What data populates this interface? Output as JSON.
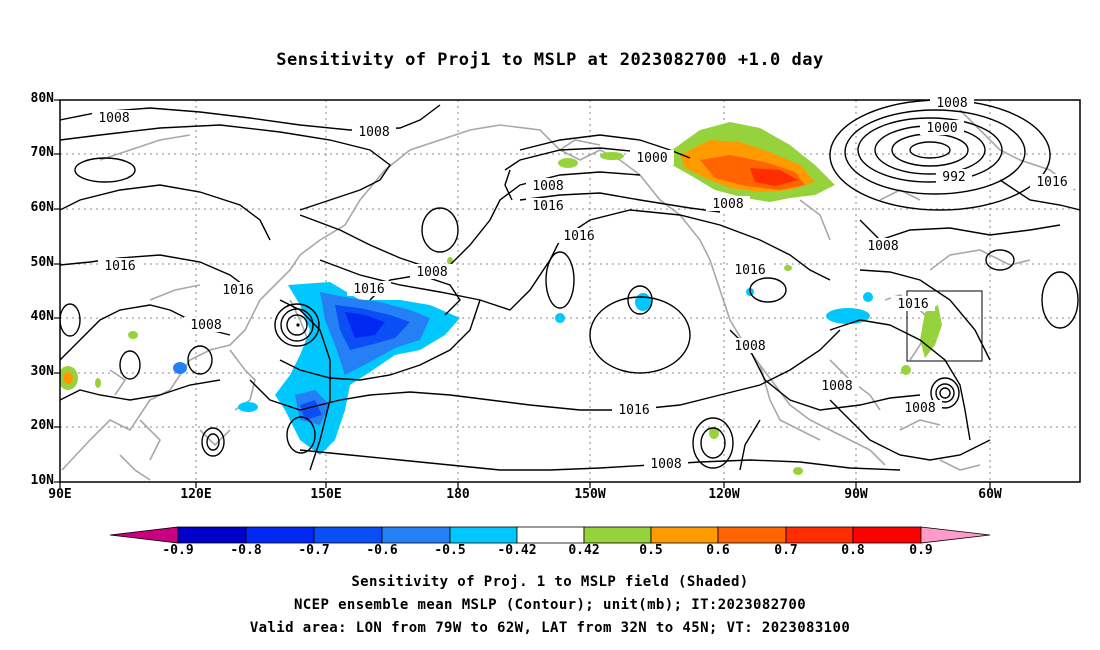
{
  "title": "Sensitivity of Proj1 to MSLP at 2023082700 +1.0 day",
  "latitude_labels": [
    "80N",
    "70N",
    "60N",
    "50N",
    "40N",
    "30N",
    "20N",
    "10N"
  ],
  "longitude_labels": [
    "90E",
    "120E",
    "150E",
    "180",
    "150W",
    "120W",
    "90W",
    "60W"
  ],
  "contour_labels": [
    "1008",
    "1008",
    "1016",
    "1016",
    "1008",
    "1016",
    "1016",
    "1008",
    "1008",
    "1016",
    "1016",
    "1000",
    "1008",
    "1016",
    "1008",
    "1008",
    "1000",
    "992",
    "1016",
    "1008",
    "1016",
    "1008",
    "1008",
    "1008",
    "1008"
  ],
  "colorbar": {
    "labels": [
      "-0.9",
      "-0.8",
      "-0.7",
      "-0.6",
      "-0.5",
      "-0.42",
      "0.42",
      "0.5",
      "0.6",
      "0.7",
      "0.8",
      "0.9"
    ],
    "colors": [
      "#c8007f",
      "#0000c8",
      "#0028f0",
      "#0a4ef5",
      "#2680f5",
      "#00c8ff",
      "#ffffff",
      "#96d23c",
      "#ff9b00",
      "#ff6400",
      "#ff2d00",
      "#ff0000",
      "#ff9bc8"
    ]
  },
  "captions": {
    "line1": "Sensitivity of Proj. 1 to MSLP field (Shaded)",
    "line2": "NCEP ensemble mean MSLP (Contour); unit(mb); IT:2023082700",
    "line3": "Valid area: LON from 79W to 62W, LAT from 32N to 45N; VT: 2023083100"
  }
}
